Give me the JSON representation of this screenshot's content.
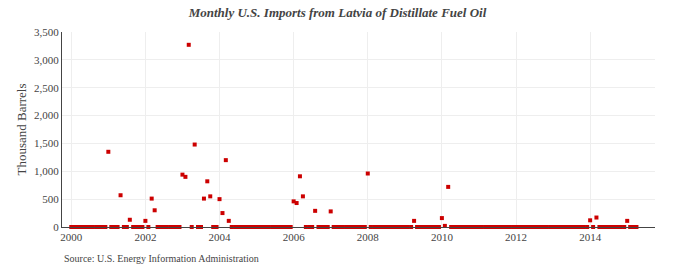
{
  "chart_data": {
    "type": "scatter",
    "title": "Monthly U.S. Imports from Latvia of Distillate Fuel Oil",
    "y_label": "Thousand Barrels",
    "annotations": [
      "Source: U.S. Energy Information Administration"
    ],
    "color": "#cc0000",
    "marker": "square",
    "grid": true,
    "xlim": [
      1999.75,
      2015.75
    ],
    "xticks": [
      2000,
      2002,
      2004,
      2006,
      2008,
      2010,
      2012,
      2014
    ],
    "ylim": [
      0,
      3500
    ],
    "yticks": [
      0,
      500,
      {
        "value": 1000,
        "label": "1,000"
      },
      {
        "value": 1500,
        "label": "1,500"
      },
      {
        "value": 2000,
        "label": "2,000"
      },
      {
        "value": 2500,
        "label": "2,500"
      },
      {
        "value": 3000,
        "label": "3,000"
      },
      {
        "value": 3500,
        "label": "3,500"
      }
    ],
    "x": [
      2000.0,
      2000.08,
      2000.17,
      2000.25,
      2000.33,
      2000.42,
      2000.5,
      2000.58,
      2000.67,
      2000.75,
      2000.83,
      2000.92,
      2001.0,
      2001.08,
      2001.17,
      2001.25,
      2001.33,
      2001.42,
      2001.5,
      2001.58,
      2001.67,
      2001.75,
      2001.83,
      2001.92,
      2002.0,
      2002.08,
      2002.17,
      2002.25,
      2002.33,
      2002.42,
      2002.5,
      2002.58,
      2002.67,
      2002.75,
      2002.83,
      2002.92,
      2003.0,
      2003.08,
      2003.17,
      2003.25,
      2003.33,
      2003.42,
      2003.5,
      2003.58,
      2003.67,
      2003.75,
      2003.83,
      2003.92,
      2004.0,
      2004.08,
      2004.17,
      2004.25,
      2004.33,
      2004.42,
      2004.5,
      2004.58,
      2004.67,
      2004.75,
      2004.83,
      2004.92,
      2005.0,
      2005.08,
      2005.17,
      2005.25,
      2005.33,
      2005.42,
      2005.5,
      2005.58,
      2005.67,
      2005.75,
      2005.83,
      2005.92,
      2006.0,
      2006.08,
      2006.17,
      2006.25,
      2006.33,
      2006.42,
      2006.5,
      2006.58,
      2006.67,
      2006.75,
      2006.83,
      2006.92,
      2007.0,
      2007.08,
      2007.17,
      2007.25,
      2007.33,
      2007.42,
      2007.5,
      2007.58,
      2007.67,
      2007.75,
      2007.83,
      2007.92,
      2008.0,
      2008.08,
      2008.17,
      2008.25,
      2008.33,
      2008.42,
      2008.5,
      2008.58,
      2008.67,
      2008.75,
      2008.83,
      2008.92,
      2009.0,
      2009.08,
      2009.17,
      2009.25,
      2009.33,
      2009.42,
      2009.5,
      2009.58,
      2009.67,
      2009.75,
      2009.83,
      2009.92,
      2010.0,
      2010.08,
      2010.17,
      2010.25,
      2010.33,
      2010.42,
      2010.5,
      2010.58,
      2010.67,
      2010.75,
      2010.83,
      2010.92,
      2011.0,
      2011.08,
      2011.17,
      2011.25,
      2011.33,
      2011.42,
      2011.5,
      2011.58,
      2011.67,
      2011.75,
      2011.83,
      2011.92,
      2012.0,
      2012.08,
      2012.17,
      2012.25,
      2012.33,
      2012.42,
      2012.5,
      2012.58,
      2012.67,
      2012.75,
      2012.83,
      2012.92,
      2013.0,
      2013.08,
      2013.17,
      2013.25,
      2013.33,
      2013.42,
      2013.5,
      2013.58,
      2013.67,
      2013.75,
      2013.83,
      2013.92,
      2014.0,
      2014.08,
      2014.17,
      2014.25,
      2014.33,
      2014.42,
      2014.5,
      2014.58,
      2014.67,
      2014.75,
      2014.83,
      2014.92,
      2015.0,
      2015.08,
      2015.17,
      2015.25
    ],
    "values": [
      0,
      0,
      0,
      0,
      0,
      0,
      0,
      0,
      0,
      0,
      0,
      0,
      1350,
      0,
      0,
      0,
      570,
      0,
      0,
      130,
      0,
      0,
      0,
      0,
      110,
      0,
      510,
      300,
      0,
      0,
      0,
      0,
      0,
      0,
      0,
      0,
      940,
      900,
      3270,
      0,
      1480,
      0,
      0,
      510,
      820,
      550,
      0,
      0,
      500,
      250,
      1200,
      110,
      0,
      0,
      0,
      0,
      0,
      0,
      0,
      0,
      0,
      0,
      0,
      0,
      0,
      0,
      0,
      0,
      0,
      0,
      0,
      0,
      460,
      430,
      910,
      550,
      0,
      0,
      0,
      290,
      0,
      0,
      0,
      0,
      280,
      0,
      0,
      0,
      0,
      0,
      0,
      0,
      0,
      0,
      0,
      0,
      960,
      0,
      0,
      0,
      0,
      0,
      0,
      0,
      0,
      0,
      0,
      0,
      0,
      0,
      0,
      110,
      0,
      0,
      0,
      0,
      0,
      0,
      0,
      0,
      160,
      20,
      720,
      0,
      0,
      0,
      0,
      0,
      0,
      0,
      0,
      0,
      0,
      0,
      0,
      0,
      0,
      0,
      0,
      0,
      0,
      0,
      0,
      0,
      0,
      0,
      0,
      0,
      0,
      0,
      0,
      0,
      0,
      0,
      0,
      0,
      0,
      0,
      0,
      0,
      0,
      0,
      0,
      0,
      0,
      0,
      0,
      0,
      120,
      0,
      170,
      0,
      0,
      0,
      0,
      0,
      0,
      0,
      0,
      0,
      110,
      0,
      0,
      0
    ]
  }
}
